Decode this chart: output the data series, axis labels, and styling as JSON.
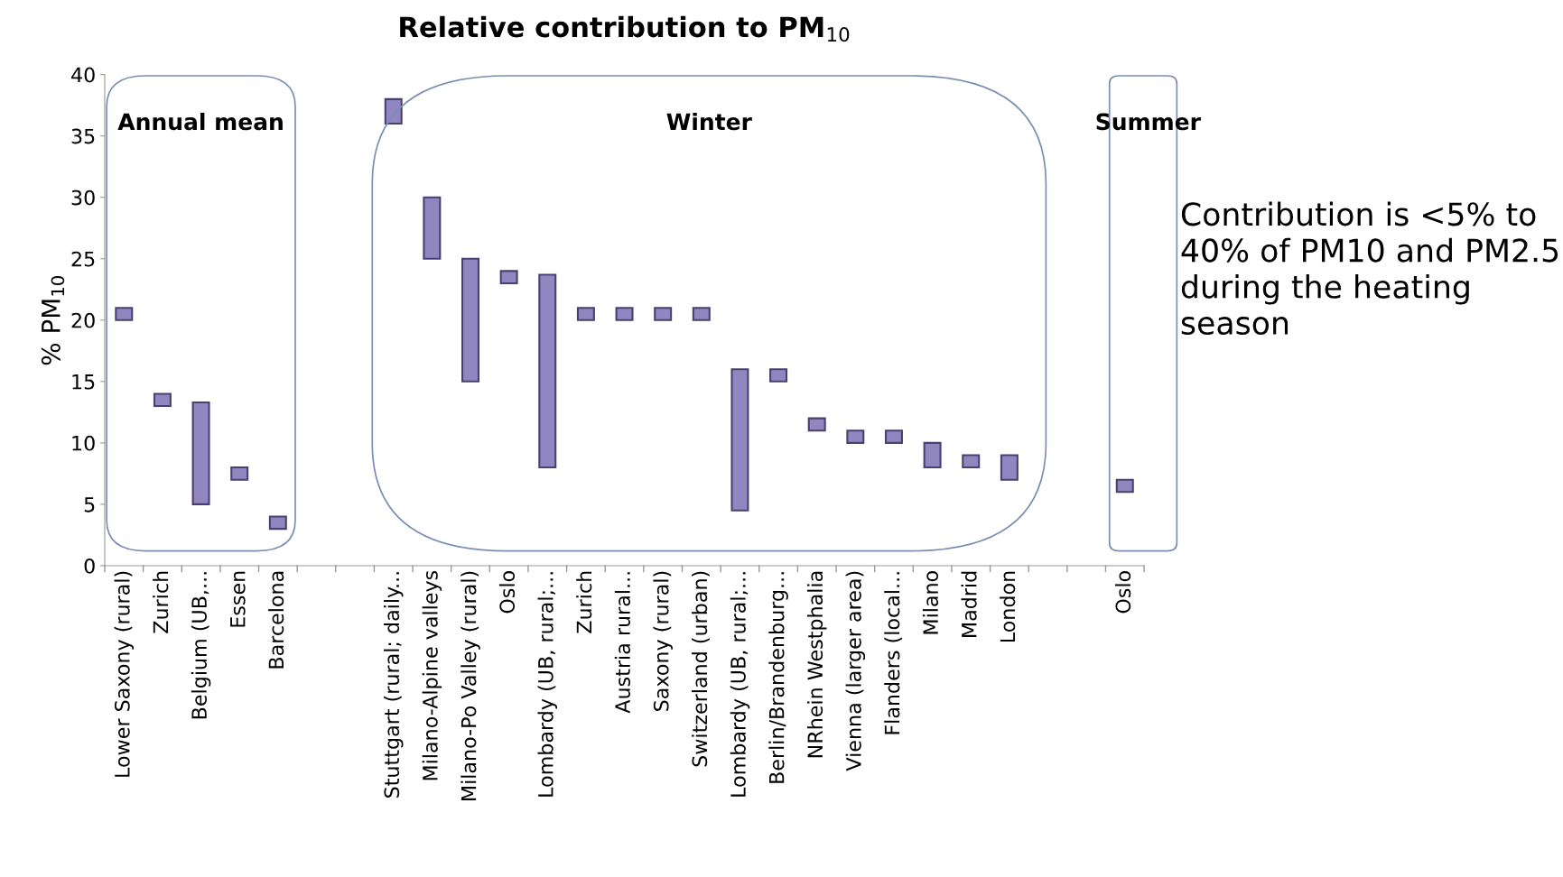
{
  "chart_data": {
    "type": "bar",
    "title": "Relative contribution to PM$_{10}$",
    "ylabel": "% PM$_{10}$",
    "categories": [
      "Lower Saxony (rural)",
      "Zurich",
      "Belgium (UB,...",
      "Essen",
      "Barcelona",
      null,
      null,
      "Stuttgart (rural; daily...",
      "Milano-Alpine valleys",
      "Milano-Po Valley (rural)",
      "Oslo",
      "Lombardy (UB, rural;...",
      "Zurich",
      "Austria rural...",
      "Saxony (rural)",
      "Switzerland (urban)",
      "Lombardy (UB, rural;...",
      "Berlin/Brandenburg...",
      "NRhein Westphalia",
      "Vienna (larger area)",
      "Flanders (local...",
      "Milano",
      "Madrid",
      "London",
      null,
      null,
      "Oslo"
    ],
    "base": [
      20,
      13,
      5,
      7,
      3,
      null,
      null,
      36,
      25,
      15,
      23,
      8,
      20,
      20,
      20,
      20,
      4.5,
      15,
      11,
      10,
      10,
      8,
      8,
      7,
      null,
      null,
      6
    ],
    "values": [
      1,
      1,
      8.3,
      1,
      1,
      null,
      null,
      2,
      5,
      10,
      1,
      15.7,
      1,
      1,
      1,
      1,
      11.5,
      1,
      1,
      1,
      1,
      2,
      1,
      2,
      null,
      null,
      1
    ],
    "color": "#9087c0",
    "ylim": [
      0,
      40
    ],
    "yticks": [
      0,
      5,
      10,
      15,
      20,
      25,
      30,
      35,
      40
    ],
    "grid": false,
    "legend": false,
    "annotations": [
      "Annual mean",
      "Winter",
      "Summer",
      "Contribution is <5% to 40% of PM10 and PM2.5 during the heating season"
    ]
  }
}
